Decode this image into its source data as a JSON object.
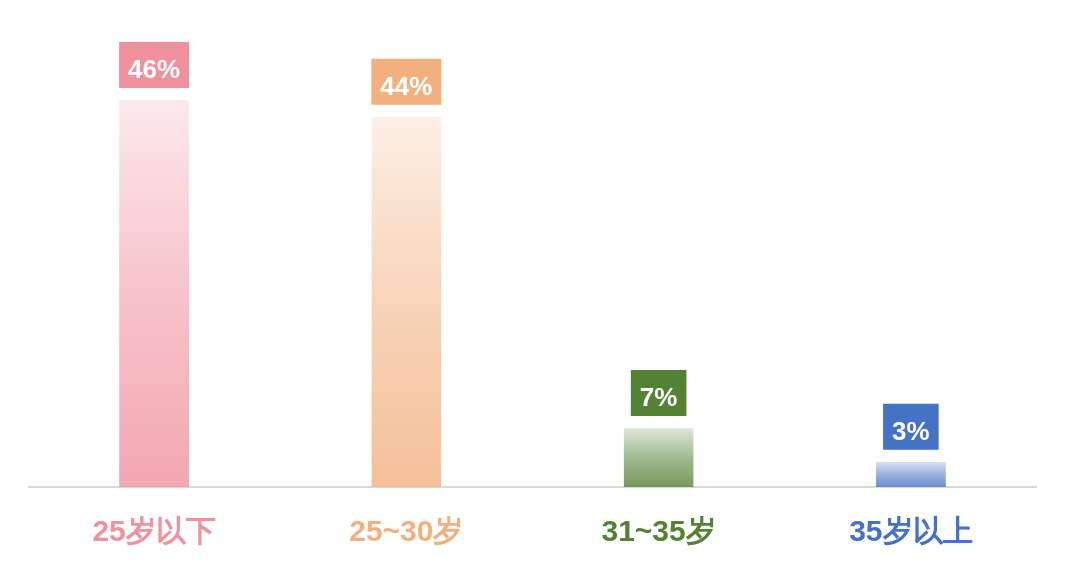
{
  "chart_data": {
    "type": "bar",
    "categories": [
      "25岁以下",
      "25~30岁",
      "31~35岁",
      "35岁以上"
    ],
    "values": [
      46,
      44,
      7,
      3
    ],
    "colors": [
      "#f0919e",
      "#f2b07f",
      "#548235",
      "#4472c4"
    ],
    "value_labels": [
      "46%",
      "44%",
      "7%",
      "3%"
    ]
  }
}
